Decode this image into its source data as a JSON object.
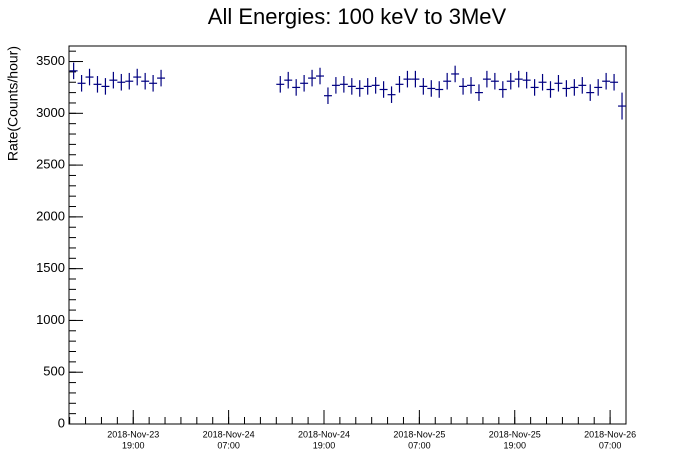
{
  "chart_data": {
    "type": "errorbar",
    "title": "All Energies:  100 keV to 3MeV",
    "y_label": "Rate(Counts/hour)",
    "color": "#000080",
    "x": [
      "2018-11-23T11:30",
      "2018-11-23T12:30",
      "2018-11-23T13:30",
      "2018-11-23T14:30",
      "2018-11-23T15:30",
      "2018-11-23T16:30",
      "2018-11-23T17:30",
      "2018-11-23T18:30",
      "2018-11-23T19:30",
      "2018-11-23T20:30",
      "2018-11-23T21:30",
      "2018-11-23T22:30",
      "2018-11-24T13:30",
      "2018-11-24T14:30",
      "2018-11-24T15:30",
      "2018-11-24T16:30",
      "2018-11-24T17:30",
      "2018-11-24T18:30",
      "2018-11-24T19:30",
      "2018-11-24T20:30",
      "2018-11-24T21:30",
      "2018-11-24T22:30",
      "2018-11-24T23:30",
      "2018-11-25T00:30",
      "2018-11-25T01:30",
      "2018-11-25T02:30",
      "2018-11-25T03:30",
      "2018-11-25T04:30",
      "2018-11-25T05:30",
      "2018-11-25T06:30",
      "2018-11-25T07:30",
      "2018-11-25T08:30",
      "2018-11-25T09:30",
      "2018-11-25T10:30",
      "2018-11-25T11:30",
      "2018-11-25T12:30",
      "2018-11-25T13:30",
      "2018-11-25T14:30",
      "2018-11-25T15:30",
      "2018-11-25T16:30",
      "2018-11-25T17:30",
      "2018-11-25T18:30",
      "2018-11-25T19:30",
      "2018-11-25T20:30",
      "2018-11-25T21:30",
      "2018-11-25T22:30",
      "2018-11-25T23:30",
      "2018-11-26T00:30",
      "2018-11-26T01:30",
      "2018-11-26T02:30",
      "2018-11-26T03:30",
      "2018-11-26T04:30",
      "2018-11-26T05:30",
      "2018-11-26T06:30",
      "2018-11-26T07:30",
      "2018-11-26T08:30"
    ],
    "values": [
      3410,
      3290,
      3350,
      3280,
      3260,
      3320,
      3300,
      3310,
      3350,
      3310,
      3290,
      3340,
      3280,
      3320,
      3250,
      3290,
      3340,
      3360,
      3170,
      3270,
      3280,
      3260,
      3240,
      3260,
      3270,
      3230,
      3180,
      3280,
      3330,
      3330,
      3260,
      3240,
      3230,
      3310,
      3380,
      3260,
      3270,
      3200,
      3330,
      3310,
      3230,
      3310,
      3330,
      3320,
      3250,
      3300,
      3230,
      3290,
      3240,
      3250,
      3270,
      3200,
      3250,
      3310,
      3300,
      3070
    ],
    "errors": [
      80,
      80,
      80,
      80,
      80,
      80,
      80,
      80,
      80,
      80,
      80,
      80,
      80,
      80,
      80,
      80,
      80,
      80,
      80,
      80,
      80,
      80,
      80,
      80,
      80,
      80,
      80,
      80,
      80,
      80,
      80,
      80,
      80,
      80,
      80,
      80,
      80,
      80,
      80,
      80,
      80,
      80,
      80,
      80,
      80,
      80,
      80,
      80,
      80,
      80,
      80,
      80,
      80,
      80,
      80,
      130
    ],
    "xlim": [
      "2018-11-23T10:55",
      "2018-11-26T09:00"
    ],
    "xticks": [
      {
        "value": "2018-11-23T19:00",
        "label": [
          "2018-Nov-23",
          "19:00"
        ]
      },
      {
        "value": "2018-11-24T07:00",
        "label": [
          "2018-Nov-24",
          "07:00"
        ]
      },
      {
        "value": "2018-11-24T19:00",
        "label": [
          "2018-Nov-24",
          "19:00"
        ]
      },
      {
        "value": "2018-11-25T07:00",
        "label": [
          "2018-Nov-25",
          "07:00"
        ]
      },
      {
        "value": "2018-11-25T19:00",
        "label": [
          "2018-Nov-25",
          "19:00"
        ]
      },
      {
        "value": "2018-11-26T07:00",
        "label": [
          "2018-Nov-26",
          "07:00"
        ]
      }
    ],
    "ylim": [
      0,
      3650
    ],
    "yticks": [
      0,
      500,
      1000,
      1500,
      2000,
      2500,
      3000,
      3500
    ],
    "grid": false
  }
}
